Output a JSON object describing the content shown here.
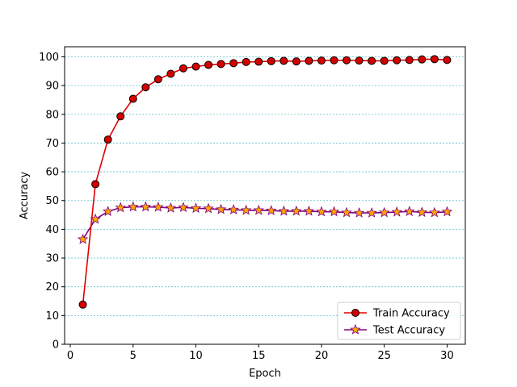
{
  "chart_data": {
    "type": "line",
    "title": "",
    "xlabel": "Epoch",
    "ylabel": "Accuracy",
    "xlim": [
      -0.45,
      31.45
    ],
    "ylim": [
      0,
      103.5
    ],
    "xticks": [
      0,
      5,
      10,
      15,
      20,
      25,
      30
    ],
    "yticks": [
      0,
      10,
      20,
      30,
      40,
      50,
      60,
      70,
      80,
      90,
      100
    ],
    "grid": {
      "axis": "y",
      "style": "dashed",
      "color": "#5bc0c8"
    },
    "legend": {
      "placement": "bottom-right"
    },
    "x": [
      1,
      2,
      3,
      4,
      5,
      6,
      7,
      8,
      9,
      10,
      11,
      12,
      13,
      14,
      15,
      16,
      17,
      18,
      19,
      20,
      21,
      22,
      23,
      24,
      25,
      26,
      27,
      28,
      29,
      30
    ],
    "series": [
      {
        "name": "Train Accuracy",
        "color": "#e00000",
        "marker": "circle",
        "marker_fill": "#d40000",
        "values": [
          13.8,
          55.7,
          71.2,
          79.3,
          85.4,
          89.4,
          92.2,
          94.1,
          96.0,
          96.6,
          97.2,
          97.5,
          97.8,
          98.2,
          98.3,
          98.5,
          98.6,
          98.4,
          98.6,
          98.7,
          98.8,
          98.8,
          98.7,
          98.6,
          98.6,
          98.8,
          98.9,
          99.1,
          99.2,
          98.9
        ]
      },
      {
        "name": "Test Accuracy",
        "color": "#800080",
        "marker": "star",
        "marker_fill": "#ffa500",
        "values": [
          36.5,
          43.5,
          46.2,
          47.5,
          47.8,
          47.8,
          47.7,
          47.4,
          47.6,
          47.3,
          47.2,
          46.9,
          46.8,
          46.6,
          46.6,
          46.5,
          46.3,
          46.3,
          46.3,
          46.1,
          46.1,
          45.8,
          45.7,
          45.7,
          45.8,
          46.0,
          46.2,
          45.9,
          45.8,
          46.1
        ]
      }
    ]
  }
}
